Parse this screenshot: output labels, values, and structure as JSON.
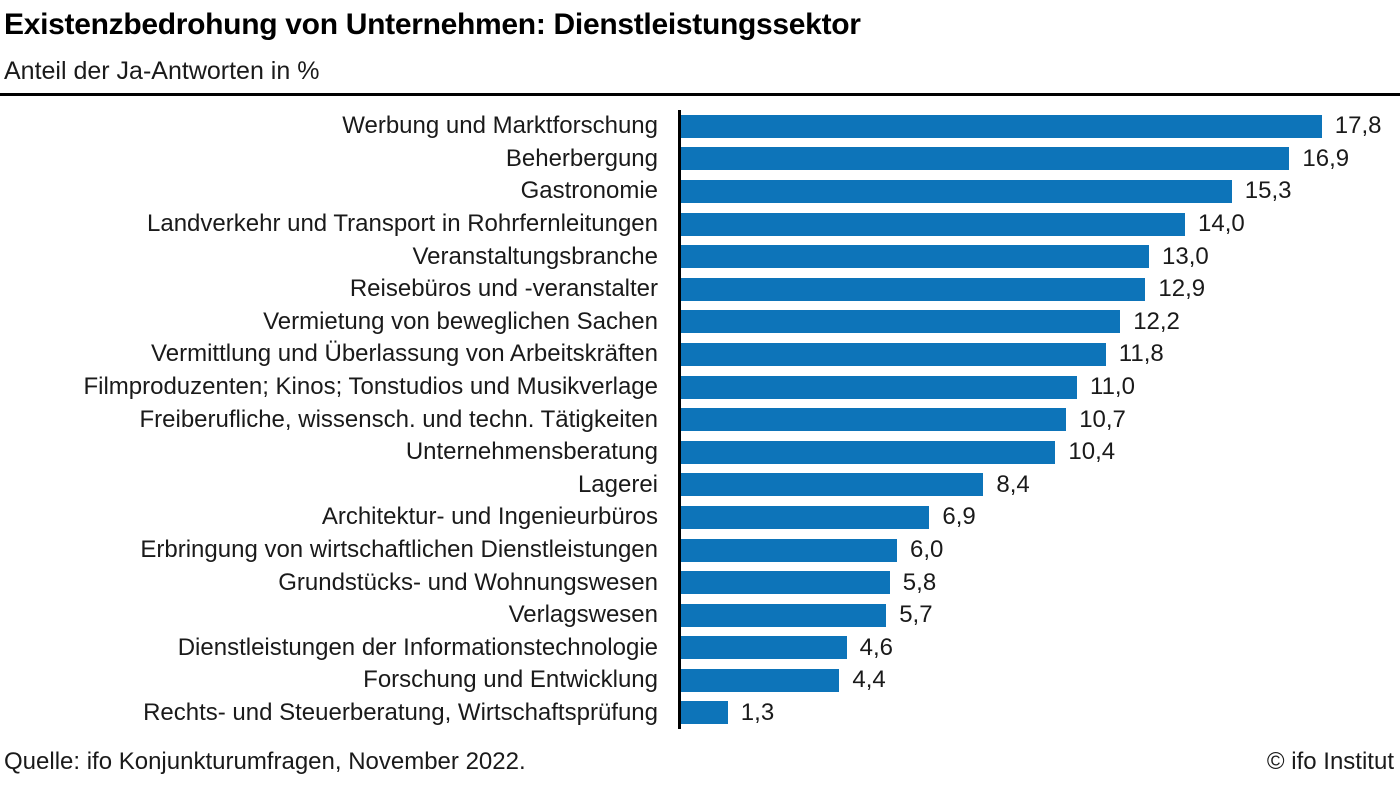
{
  "header": {
    "title": "Existenzbedrohung von Unternehmen: Dienstleistungssektor",
    "subtitle": "Anteil der Ja-Antworten in %"
  },
  "footer": {
    "source": "Quelle: ifo Konjunkturumfragen, November 2022.",
    "copyright": "© ifo Institut"
  },
  "colors": {
    "bar": "#0d74b9",
    "axis": "#000000",
    "text": "#1a1a1a"
  },
  "chart_data": {
    "type": "bar",
    "orientation": "horizontal",
    "title": "Existenzbedrohung von Unternehmen: Dienstleistungssektor",
    "subtitle": "Anteil der Ja-Antworten in %",
    "unit": "%",
    "xlim": [
      0,
      18
    ],
    "grid": false,
    "legend": null,
    "value_label_position": "end-of-bar",
    "categories": [
      "Werbung und Marktforschung",
      "Beherbergung",
      "Gastronomie",
      "Landverkehr und Transport in Rohrfernleitungen",
      "Veranstaltungsbranche",
      "Reisebüros und -veranstalter",
      "Vermietung von beweglichen Sachen",
      "Vermittlung und Überlassung von Arbeitskräften",
      "Filmproduzenten; Kinos; Tonstudios und Musikverlage",
      "Freiberufliche, wissensch. und techn. Tätigkeiten",
      "Unternehmensberatung",
      "Lagerei",
      "Architektur- und Ingenieurbüros",
      "Erbringung von wirtschaftlichen Dienstleistungen",
      "Grundstücks- und Wohnungswesen",
      "Verlagswesen",
      "Dienstleistungen der Informationstechnologie",
      "Forschung und Entwicklung",
      "Rechts- und Steuerberatung, Wirtschaftsprüfung"
    ],
    "values": [
      17.8,
      16.9,
      15.3,
      14.0,
      13.0,
      12.9,
      12.2,
      11.8,
      11.0,
      10.7,
      10.4,
      8.4,
      6.9,
      6.0,
      5.8,
      5.7,
      4.6,
      4.4,
      1.3
    ],
    "value_labels": [
      "17,8",
      "16,9",
      "15,3",
      "14,0",
      "13,0",
      "12,9",
      "12,2",
      "11,8",
      "11,0",
      "10,7",
      "10,4",
      "8,4",
      "6,9",
      "6,0",
      "5,8",
      "5,7",
      "4,6",
      "4,4",
      "1,3"
    ]
  }
}
